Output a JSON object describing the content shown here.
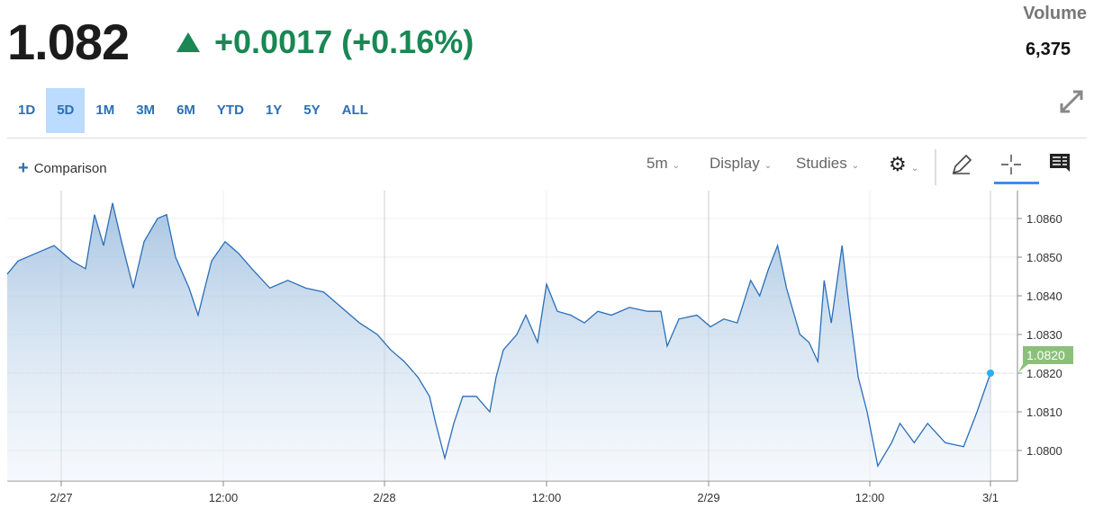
{
  "header": {
    "price": "1.082",
    "change": "+0.0017 (+0.16%)",
    "change_color": "#1a8754",
    "volume_label": "Volume",
    "volume_value": "6,375"
  },
  "ranges": [
    {
      "label": "1D"
    },
    {
      "label": "5D",
      "active": true
    },
    {
      "label": "1M"
    },
    {
      "label": "3M"
    },
    {
      "label": "6M"
    },
    {
      "label": "YTD"
    },
    {
      "label": "1Y"
    },
    {
      "label": "5Y"
    },
    {
      "label": "ALL"
    }
  ],
  "toolbar": {
    "comparison": "Comparison",
    "interval": "5m",
    "display": "Display",
    "studies": "Studies"
  },
  "chart_data": {
    "type": "area",
    "line_color": "#2a6fb8",
    "ylim": [
      1.0795,
      1.0867
    ],
    "y_ticks": [
      "1.0860",
      "1.0850",
      "1.0840",
      "1.0830",
      "1.0820",
      "1.0810",
      "1.0800"
    ],
    "x_ticks": [
      {
        "label": "2/27",
        "t": "2/27 00:00"
      },
      {
        "label": "12:00",
        "t": "2/27 12:00"
      },
      {
        "label": "2/28",
        "t": "2/28 00:00"
      },
      {
        "label": "12:00",
        "t": "2/28 12:00"
      },
      {
        "label": "2/29",
        "t": "2/29 00:00"
      },
      {
        "label": "12:00",
        "t": "2/29 12:00"
      },
      {
        "label": "3/1",
        "t": "3/1 00:00"
      }
    ],
    "last_price": "1.0820",
    "last_price_color": "#8cc07a",
    "points": [
      [
        "2/26 20:00",
        1.08456
      ],
      [
        "2/26 20:48",
        1.0849
      ],
      [
        "2/26 22:08",
        1.0851
      ],
      [
        "2/26 23:28",
        1.0853
      ],
      [
        "2/27 00:48",
        1.0849
      ],
      [
        "2/27 01:48",
        1.0847
      ],
      [
        "2/27 02:28",
        1.0861
      ],
      [
        "2/27 03:08",
        1.0853
      ],
      [
        "2/27 03:48",
        1.0864
      ],
      [
        "2/27 04:28",
        1.0854
      ],
      [
        "2/27 05:20",
        1.0842
      ],
      [
        "2/27 06:08",
        1.0854
      ],
      [
        "2/27 07:08",
        1.086
      ],
      [
        "2/27 07:48",
        1.0861
      ],
      [
        "2/27 08:28",
        1.085
      ],
      [
        "2/27 09:28",
        1.0842
      ],
      [
        "2/27 10:08",
        1.0835
      ],
      [
        "2/27 11:08",
        1.0849
      ],
      [
        "2/27 12:08",
        1.0854
      ],
      [
        "2/27 13:08",
        1.0851
      ],
      [
        "2/27 14:08",
        1.0847
      ],
      [
        "2/27 15:28",
        1.0842
      ],
      [
        "2/27 16:48",
        1.0844
      ],
      [
        "2/27 18:08",
        1.0842
      ],
      [
        "2/27 19:28",
        1.0841
      ],
      [
        "2/27 20:48",
        1.0837
      ],
      [
        "2/27 22:08",
        1.0833
      ],
      [
        "2/27 23:28",
        1.083
      ],
      [
        "2/28 00:28",
        1.0826
      ],
      [
        "2/28 01:28",
        1.0823
      ],
      [
        "2/28 02:28",
        1.0819
      ],
      [
        "2/28 03:20",
        1.0814
      ],
      [
        "2/28 03:48",
        1.0807
      ],
      [
        "2/28 04:28",
        1.0798
      ],
      [
        "2/28 05:08",
        1.0807
      ],
      [
        "2/28 05:48",
        1.0814
      ],
      [
        "2/28 06:48",
        1.0814
      ],
      [
        "2/28 07:48",
        1.081
      ],
      [
        "2/28 08:16",
        1.0819
      ],
      [
        "2/28 08:48",
        1.0826
      ],
      [
        "2/28 09:48",
        1.083
      ],
      [
        "2/28 10:28",
        1.0835
      ],
      [
        "2/28 11:20",
        1.0828
      ],
      [
        "2/28 12:00",
        1.0843
      ],
      [
        "2/28 12:48",
        1.0836
      ],
      [
        "2/28 13:48",
        1.0835
      ],
      [
        "2/28 14:48",
        1.0833
      ],
      [
        "2/28 15:48",
        1.0836
      ],
      [
        "2/28 16:48",
        1.0835
      ],
      [
        "2/28 18:08",
        1.0837
      ],
      [
        "2/28 19:28",
        1.0836
      ],
      [
        "2/28 20:28",
        1.0836
      ],
      [
        "2/28 20:56",
        1.0827
      ],
      [
        "2/28 21:48",
        1.0834
      ],
      [
        "2/28 23:08",
        1.0835
      ],
      [
        "2/29 00:08",
        1.0832
      ],
      [
        "2/29 01:08",
        1.0834
      ],
      [
        "2/29 02:08",
        1.0833
      ],
      [
        "2/29 03:08",
        1.0844
      ],
      [
        "2/29 03:48",
        1.084
      ],
      [
        "2/29 04:28",
        1.0847
      ],
      [
        "2/29 05:08",
        1.0853
      ],
      [
        "2/29 05:48",
        1.0842
      ],
      [
        "2/29 06:48",
        1.083
      ],
      [
        "2/29 07:28",
        1.0828
      ],
      [
        "2/29 08:08",
        1.0823
      ],
      [
        "2/29 08:36",
        1.0844
      ],
      [
        "2/29 09:08",
        1.0833
      ],
      [
        "2/29 09:56",
        1.0853
      ],
      [
        "2/29 10:28",
        1.0837
      ],
      [
        "2/29 11:08",
        1.0819
      ],
      [
        "2/29 11:48",
        1.081
      ],
      [
        "2/29 12:48",
        1.0796
      ],
      [
        "2/29 14:10",
        1.0802
      ],
      [
        "2/29 15:00",
        1.0807
      ],
      [
        "2/29 16:25",
        1.0802
      ],
      [
        "2/29 17:45",
        1.0807
      ],
      [
        "2/29 19:30",
        1.0802
      ],
      [
        "2/29 21:20",
        1.0801
      ],
      [
        "2/29 22:40",
        1.081
      ],
      [
        "3/1 00:00",
        1.082
      ]
    ]
  }
}
